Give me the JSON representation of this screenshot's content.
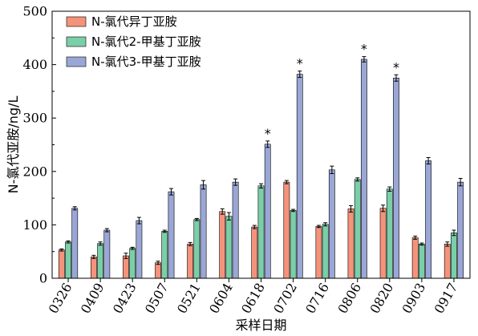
{
  "chart_data": {
    "type": "bar",
    "xlabel": "采样日期",
    "ylabel": "N-氯代亚胺/ng/L",
    "ylim": [
      0,
      500
    ],
    "yticks": [
      0,
      100,
      200,
      300,
      400,
      500
    ],
    "grid": false,
    "legend_position": "top-left",
    "categories": [
      "0326",
      "0409",
      "0423",
      "0507",
      "0521",
      "0604",
      "0618",
      "0702",
      "0716",
      "0806",
      "0820",
      "0903",
      "0917"
    ],
    "series": [
      {
        "name": "N-氯代异丁亚胺",
        "color": "#f4937b",
        "values": [
          53,
          40,
          42,
          29,
          64,
          125,
          96,
          180,
          97,
          130,
          131,
          76,
          64
        ],
        "errors": [
          2,
          3,
          5,
          3,
          3,
          5,
          3,
          3,
          2,
          6,
          6,
          3,
          4
        ]
      },
      {
        "name": "N-氯代2-甲基丁亚胺",
        "color": "#7bcfa8",
        "values": [
          68,
          65,
          56,
          88,
          110,
          116,
          173,
          127,
          101,
          185,
          167,
          64,
          85
        ],
        "errors": [
          2,
          3,
          2,
          2,
          2,
          7,
          4,
          2,
          3,
          3,
          4,
          2,
          5
        ]
      },
      {
        "name": "N-氯代3-甲基丁亚胺",
        "color": "#9aa7d6",
        "values": [
          131,
          90,
          108,
          162,
          175,
          180,
          251,
          382,
          203,
          410,
          375,
          220,
          180
        ],
        "errors": [
          3,
          3,
          6,
          6,
          8,
          6,
          6,
          6,
          7,
          5,
          6,
          6,
          7
        ]
      }
    ],
    "annotations": [
      {
        "category": "0618",
        "text": "*"
      },
      {
        "category": "0702",
        "text": "*"
      },
      {
        "category": "0806",
        "text": "*"
      },
      {
        "category": "0820",
        "text": "*"
      }
    ]
  }
}
